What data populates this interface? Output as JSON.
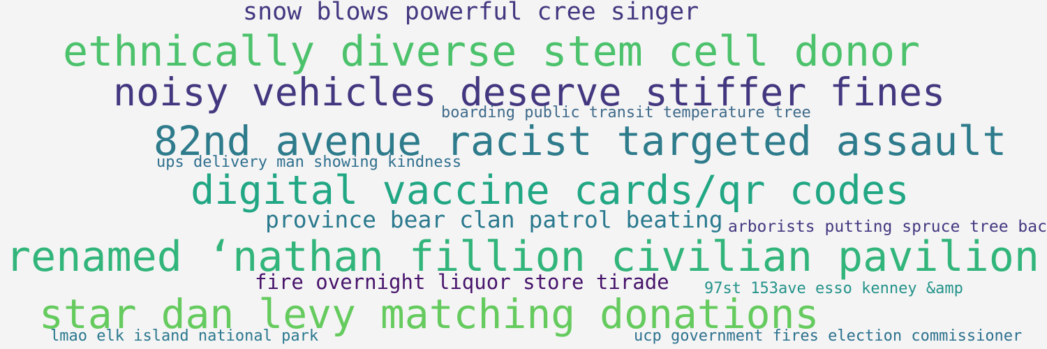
{
  "words": [
    {
      "text": "snow blows powerful cree singer",
      "color": "#433880"
    },
    {
      "text": "ethnically diverse stem cell donor",
      "color": "#4cc26c"
    },
    {
      "text": "noisy vehicles deserve stiffer fines",
      "color": "#433880"
    },
    {
      "text": "boarding public transit temperature tree",
      "color": "#3f6a8a"
    },
    {
      "text": "82nd avenue racist targeted assault",
      "color": "#2e7b8c"
    },
    {
      "text": "ups delivery man showing kindness",
      "color": "#2f6f8e"
    },
    {
      "text": "digital vaccine cards/qr codes",
      "color": "#22a784"
    },
    {
      "text": "province bear clan patrol beating",
      "color": "#2a798e"
    },
    {
      "text": "arborists putting spruce tree back",
      "color": "#433880"
    },
    {
      "text": "renamed ‘nathan fillion civilian pavilion",
      "color": "#32b57b"
    },
    {
      "text": "fire overnight liquor store tirade",
      "color": "#47136b"
    },
    {
      "text": "97st 153ave esso kenney &amp",
      "color": "#24938a"
    },
    {
      "text": "star dan levy matching donations",
      "color": "#65cb5e"
    },
    {
      "text": "lmao elk island national park",
      "color": "#2a788e"
    },
    {
      "text": "ucp government fires election commissioner",
      "color": "#2c718e"
    }
  ]
}
